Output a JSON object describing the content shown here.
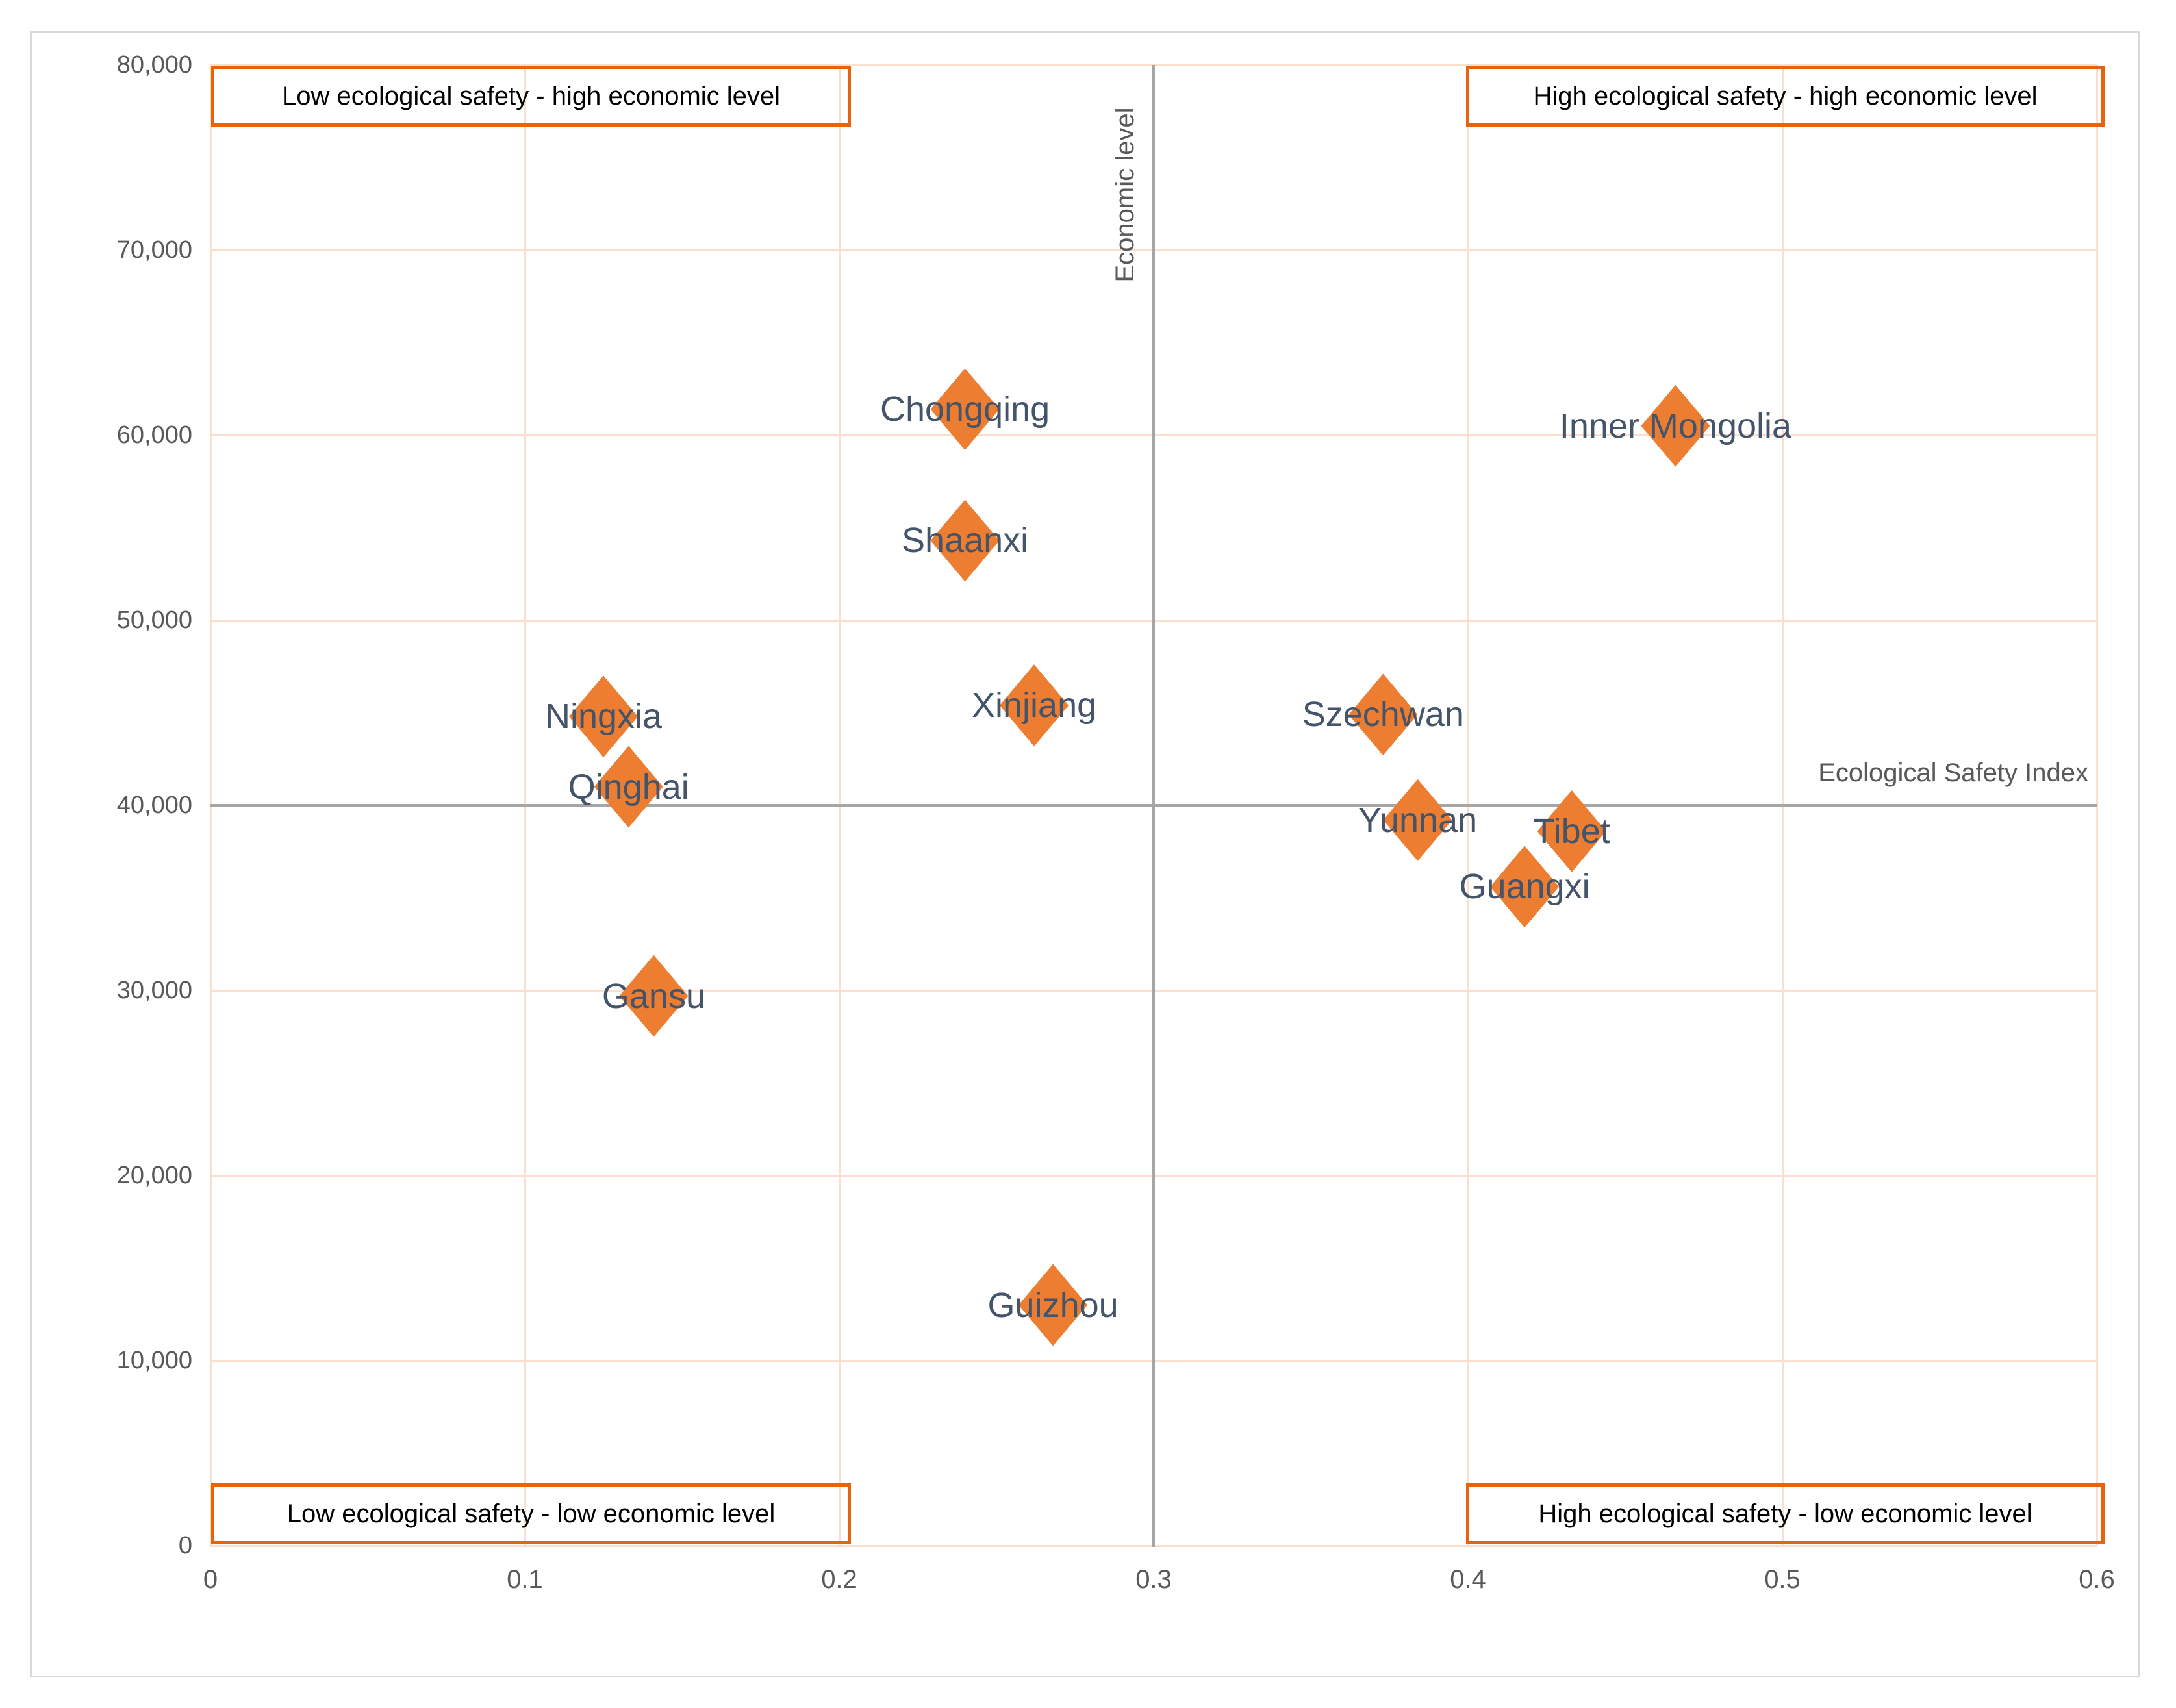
{
  "chart_data": {
    "type": "scatter",
    "title": "",
    "xlabel": "Ecological Safety Index",
    "ylabel": "Economic level",
    "xlim": [
      0,
      0.6
    ],
    "ylim": [
      0,
      80000
    ],
    "grid": true,
    "legend": "none",
    "cross_x": 0.3,
    "cross_y": 40000,
    "x_ticks": [
      {
        "value": 0.0,
        "label": "0"
      },
      {
        "value": 0.1,
        "label": "0.1"
      },
      {
        "value": 0.2,
        "label": "0.2"
      },
      {
        "value": 0.3,
        "label": "0.3"
      },
      {
        "value": 0.4,
        "label": "0.4"
      },
      {
        "value": 0.5,
        "label": "0.5"
      },
      {
        "value": 0.6,
        "label": "0.6"
      }
    ],
    "y_ticks": [
      {
        "value": 0,
        "label": "0"
      },
      {
        "value": 10000,
        "label": "10,000"
      },
      {
        "value": 20000,
        "label": "20,000"
      },
      {
        "value": 30000,
        "label": "30,000"
      },
      {
        "value": 40000,
        "label": "40,000"
      },
      {
        "value": 50000,
        "label": "50,000"
      },
      {
        "value": 60000,
        "label": "60,000"
      },
      {
        "value": 70000,
        "label": "70,000"
      },
      {
        "value": 80000,
        "label": "80,000"
      }
    ],
    "points": [
      {
        "label": "Chongqing",
        "x": 0.24,
        "y": 61400
      },
      {
        "label": "Inner Mongolia",
        "x": 0.466,
        "y": 60500
      },
      {
        "label": "Shaanxi",
        "x": 0.24,
        "y": 54300
      },
      {
        "label": "Xinjiang",
        "x": 0.262,
        "y": 45400
      },
      {
        "label": "Szechwan",
        "x": 0.373,
        "y": 44900
      },
      {
        "label": "Ningxia",
        "x": 0.125,
        "y": 44800
      },
      {
        "label": "Qinghai",
        "x": 0.133,
        "y": 41000
      },
      {
        "label": "Yunnan",
        "x": 0.384,
        "y": 39200
      },
      {
        "label": "Tibet",
        "x": 0.433,
        "y": 38600
      },
      {
        "label": "Guangxi",
        "x": 0.418,
        "y": 35600
      },
      {
        "label": "Gansu",
        "x": 0.141,
        "y": 29700
      },
      {
        "label": "Guizhou",
        "x": 0.268,
        "y": 13000
      }
    ],
    "quadrant_labels": {
      "top_left": "Low ecological safety - high economic level",
      "top_right": "High ecological safety - high economic level",
      "bottom_left": "Low ecological safety - low economic level",
      "bottom_right": "High ecological safety - low economic level"
    },
    "colors": {
      "marker": "#ED7D31",
      "marker_label": "#44546A",
      "gridline": "#FBDFCC",
      "axis_line": "#A6A6A6",
      "tick_label": "#595959",
      "axis_title": "#595959",
      "quadrant_border": "#E8630C",
      "quadrant_text": "#000000",
      "frame_border": "#D9D9D9"
    }
  }
}
